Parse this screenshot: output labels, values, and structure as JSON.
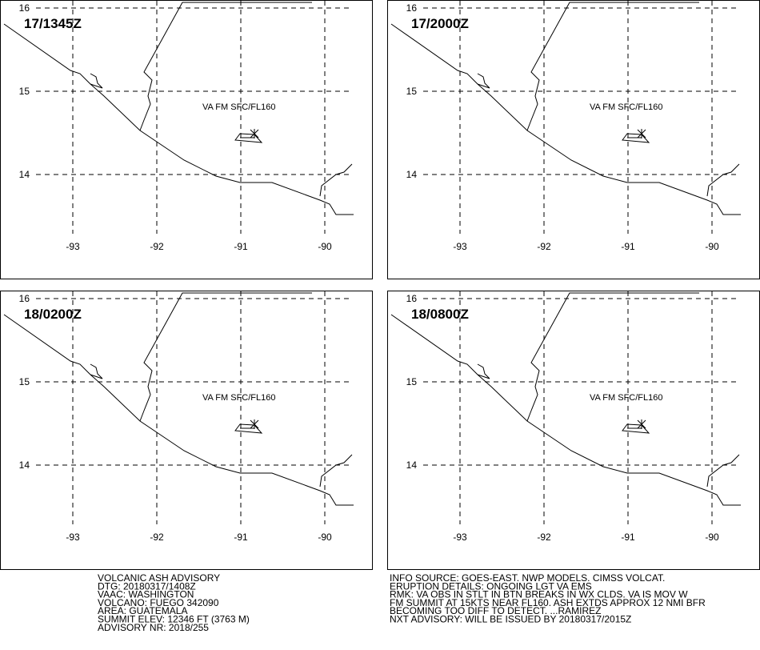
{
  "panels": [
    {
      "time": "17/1345Z",
      "label": "VA FM SFC/FL160"
    },
    {
      "time": "17/2000Z",
      "label": "VA FM SFC/FL160"
    },
    {
      "time": "18/0200Z",
      "label": "VA FM SFC/FL160"
    },
    {
      "time": "18/0800Z",
      "label": "VA FM SFC/FL160"
    }
  ],
  "lat_ticks": [
    16,
    15,
    14
  ],
  "lon_ticks": [
    -93,
    -92,
    -91,
    -90
  ],
  "advisory_left": [
    "VOLCANIC ASH ADVISORY",
    "DTG: 20180317/1408Z",
    "VAAC: WASHINGTON",
    "VOLCANO: FUEGO 342090",
    "AREA: GUATEMALA",
    "SUMMIT ELEV: 12346 FT (3763 M)",
    "ADVISORY NR: 2018/255"
  ],
  "advisory_right": [
    "INFO SOURCE: GOES-EAST. NWP MODELS. CIMSS VOLCAT.",
    "ERUPTION DETAILS: ONGOING LGT VA EMS",
    "RMK: VA OBS IN STLT IN BTN BREAKS IN WX CLDS. VA IS MOV W",
    "FM SUMMIT AT 15KTS NEAR FL160. ASH EXTDS APPROX 12 NMI BFR",
    "BECOMING TOO DIFF TO DETECT. ...RAMIREZ",
    "NXT ADVISORY: WILL BE ISSUED BY 20180317/2015Z"
  ]
}
